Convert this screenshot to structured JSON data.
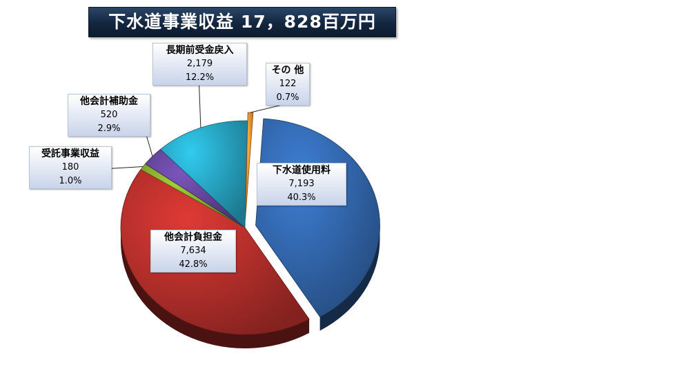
{
  "title": "下水道事業収益 17，828百万円",
  "chart_data": {
    "type": "pie",
    "title": "下水道事業収益 17，828百万円",
    "total": 17828,
    "unit": "百万円",
    "slices": [
      {
        "name": "下水道使用料",
        "value": 7193,
        "value_label": "7,193",
        "percent": "40.3%",
        "color": "#2e5e9e",
        "exploded": true
      },
      {
        "name": "他会計負担金",
        "value": 7634,
        "value_label": "7,634",
        "percent": "42.8%",
        "color": "#a52b27",
        "exploded": false
      },
      {
        "name": "受託事業収益",
        "value": 180,
        "value_label": "180",
        "percent": "1.0%",
        "color": "#7a9a2a",
        "exploded": false
      },
      {
        "name": "他会計補助金",
        "value": 520,
        "value_label": "520",
        "percent": "2.9%",
        "color": "#5b3f8c",
        "exploded": false
      },
      {
        "name": "長期前受金戻入",
        "value": 2179,
        "value_label": "2,179",
        "percent": "12.2%",
        "color": "#2496b1",
        "exploded": false
      },
      {
        "name": "その 他",
        "value": 122,
        "value_label": "122",
        "percent": "0.7%",
        "color": "#e8822a",
        "exploded": true
      }
    ],
    "legend": "none"
  }
}
